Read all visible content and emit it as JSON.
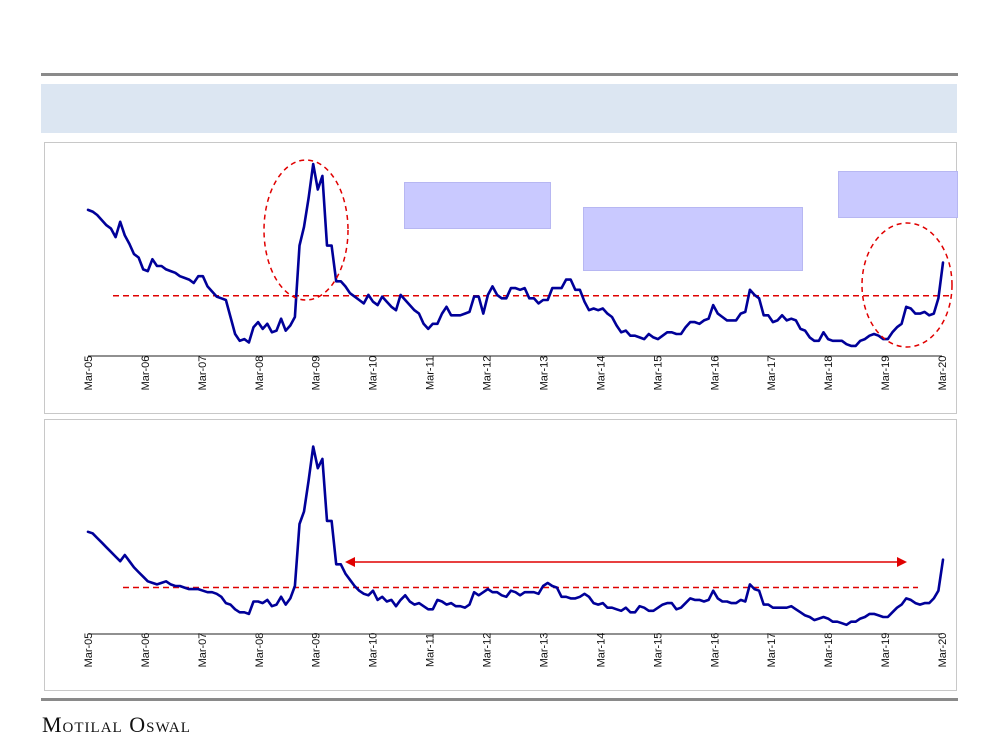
{
  "footer": {
    "brand": "Motilal Oswal"
  },
  "colors": {
    "series": "#000099",
    "reference": "#e00000",
    "band": "#dce6f2",
    "callout": "#c9c9ff"
  },
  "chart_data": [
    {
      "type": "line",
      "x_ticks": [
        "Mar-05",
        "Mar-06",
        "Mar-07",
        "Mar-08",
        "Mar-09",
        "Mar-10",
        "Mar-11",
        "Mar-12",
        "Mar-13",
        "Mar-14",
        "Mar-15",
        "Mar-16",
        "Mar-17",
        "Mar-18",
        "Mar-19",
        "Mar-20"
      ],
      "y_range": [
        0,
        100
      ],
      "grid": false,
      "reference_line": {
        "style": "dashed",
        "value": 32.5
      },
      "highlights": [
        "ellipse around Mar-09 peak",
        "ellipse around Mar-20 rise"
      ],
      "series": [
        {
          "values": [
            83,
            82,
            80,
            77,
            74,
            72,
            67,
            76,
            68,
            63,
            57,
            55,
            48,
            47,
            54,
            50,
            50,
            48,
            47,
            46,
            44,
            43,
            42,
            40,
            44,
            44,
            38,
            35,
            32,
            31,
            30,
            20,
            10,
            6,
            7,
            5,
            14,
            17,
            13,
            16,
            11,
            12,
            19,
            12,
            15,
            20,
            62,
            73,
            90,
            110,
            95,
            103,
            62,
            62,
            41,
            41,
            38,
            34,
            32,
            30,
            28,
            33,
            29,
            27,
            32,
            29,
            26,
            24,
            33,
            30,
            27,
            24,
            22,
            16,
            13,
            16,
            16,
            22,
            26,
            21,
            21,
            21,
            22,
            23,
            32,
            32,
            22,
            33,
            38,
            33,
            31,
            31,
            37,
            37,
            36,
            37,
            31,
            31,
            28,
            30,
            30,
            37,
            37,
            37,
            42,
            42,
            36,
            36,
            29,
            24,
            25,
            24,
            25,
            22,
            20,
            15,
            11,
            12,
            9,
            9,
            8,
            7,
            10,
            8,
            7,
            9,
            11,
            11,
            10,
            10,
            14,
            17,
            17,
            16,
            18,
            19,
            27,
            22,
            20,
            18,
            18,
            18,
            22,
            23,
            36,
            33,
            31,
            21,
            21,
            17,
            18,
            21,
            18,
            19,
            18,
            13,
            12,
            8,
            6,
            6,
            11,
            7,
            6,
            6,
            6,
            4,
            3,
            3,
            6,
            7,
            9,
            10,
            9,
            7,
            7,
            11,
            14,
            16,
            26,
            25,
            22,
            22,
            23,
            21,
            22,
            31,
            52
          ]
        }
      ]
    },
    {
      "type": "line",
      "x_ticks": [
        "Mar-05",
        "Mar-06",
        "Mar-07",
        "Mar-08",
        "Mar-09",
        "Mar-10",
        "Mar-11",
        "Mar-12",
        "Mar-13",
        "Mar-14",
        "Mar-15",
        "Mar-16",
        "Mar-17",
        "Mar-18",
        "Mar-19",
        "Mar-20"
      ],
      "y_range": [
        0,
        100
      ],
      "grid": false,
      "reference_line": {
        "style": "dashed",
        "value": 19
      },
      "highlights": [
        "double-headed arrow spanning Mar-09 to Mar-19"
      ],
      "series": [
        {
          "values": [
            55,
            54,
            51,
            48,
            45,
            42,
            39,
            36,
            40,
            36,
            32,
            29,
            26,
            23,
            22,
            21,
            22,
            23,
            21,
            20,
            20,
            19,
            18,
            18,
            18,
            17,
            16,
            16,
            15,
            13,
            9,
            8,
            5,
            3,
            3,
            2,
            10,
            10,
            9,
            11,
            7,
            8,
            13,
            8,
            12,
            20,
            60,
            68,
            88,
            110,
            96,
            102,
            62,
            62,
            34,
            34,
            28,
            24,
            20,
            17,
            15,
            14,
            17,
            11,
            13,
            10,
            11,
            7,
            11,
            14,
            10,
            8,
            9,
            7,
            5,
            5,
            11,
            10,
            8,
            9,
            7,
            7,
            6,
            8,
            16,
            14,
            16,
            18,
            16,
            16,
            14,
            13,
            17,
            16,
            14,
            16,
            16,
            16,
            15,
            20,
            22,
            20,
            19,
            13,
            13,
            12,
            12,
            13,
            15,
            13,
            9,
            8,
            9,
            6,
            6,
            5,
            4,
            6,
            3,
            3,
            7,
            6,
            4,
            4,
            6,
            8,
            9,
            9,
            5,
            6,
            9,
            12,
            11,
            11,
            10,
            11,
            17,
            12,
            10,
            10,
            9,
            9,
            11,
            10,
            21,
            18,
            17,
            8,
            8,
            6,
            6,
            6,
            6,
            7,
            5,
            3,
            1,
            0,
            -2,
            -1,
            0,
            -1,
            -3,
            -3,
            -4,
            -5,
            -3,
            -3,
            -1,
            0,
            2,
            2,
            1,
            0,
            0,
            3,
            6,
            8,
            12,
            11,
            9,
            8,
            9,
            9,
            12,
            17,
            37
          ]
        }
      ]
    }
  ]
}
